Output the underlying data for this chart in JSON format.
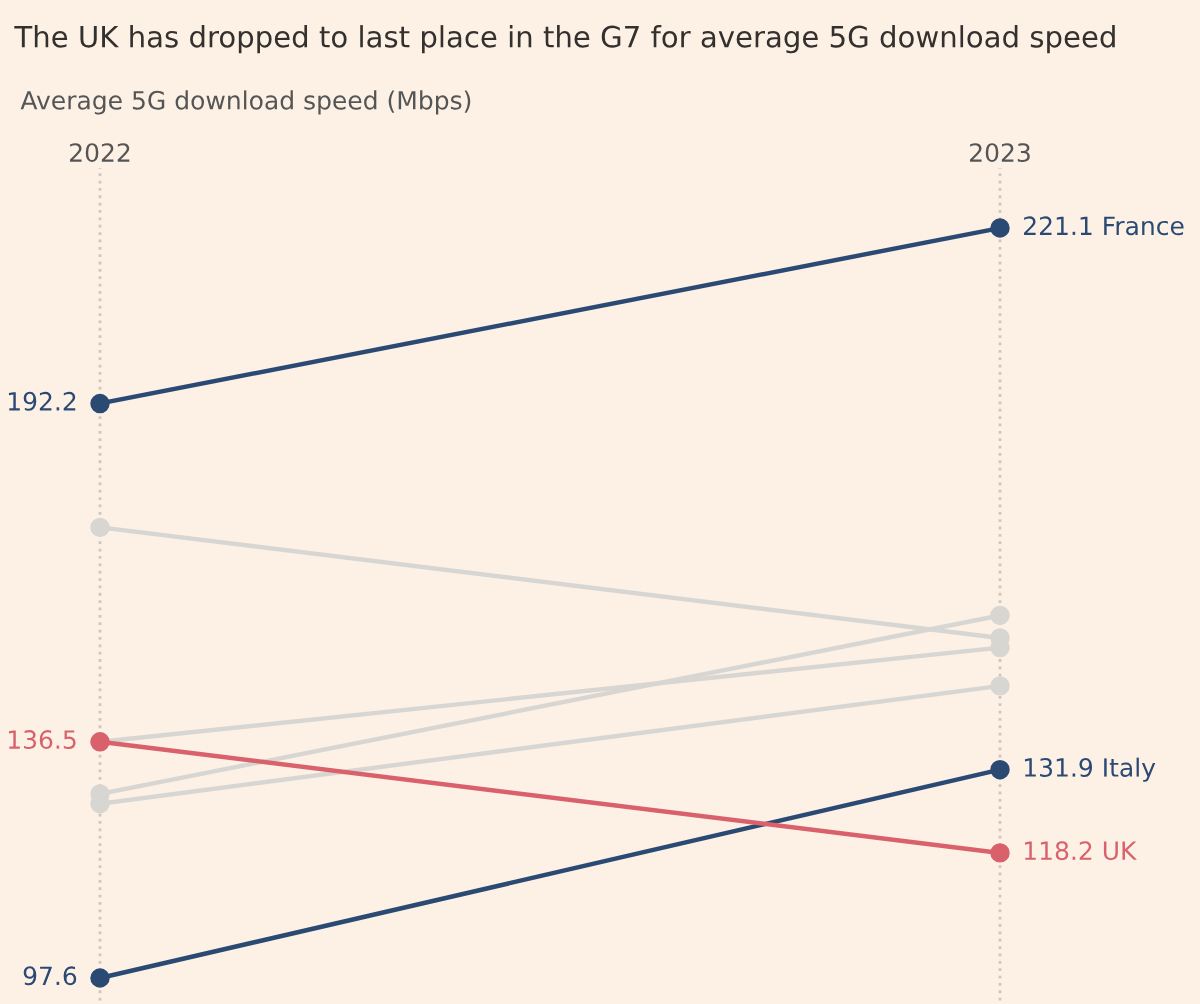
{
  "chart_data": {
    "type": "line",
    "title": "The UK has dropped to last place in the G7 for average 5G download speed",
    "subtitle": "Average 5G download speed (Mbps)",
    "categories": [
      "2022",
      "2023"
    ],
    "grid": "x",
    "marker": "circle",
    "series": [
      {
        "color": "#d8d6d3",
        "values": [
          171.8,
          153.6
        ]
      },
      {
        "color": "#d8d6d3",
        "values": [
          136.5,
          152.0
        ]
      },
      {
        "color": "#d8d6d3",
        "values": [
          127.9,
          157.3
        ]
      },
      {
        "color": "#d8d6d3",
        "values": [
          126.3,
          145.7
        ]
      },
      {
        "name": "France",
        "color": "#2a4a73",
        "values": [
          192.2,
          221.1
        ],
        "value_labels": [
          "192.2",
          "221.1"
        ]
      },
      {
        "name": "Italy",
        "color": "#2a4a73",
        "values": [
          97.6,
          131.9
        ],
        "value_labels": [
          "97.6",
          "131.9"
        ]
      },
      {
        "name": "UK",
        "color": "#d9616b",
        "values": [
          136.5,
          118.2
        ],
        "value_labels": [
          "136.5",
          "118.2"
        ]
      }
    ]
  }
}
